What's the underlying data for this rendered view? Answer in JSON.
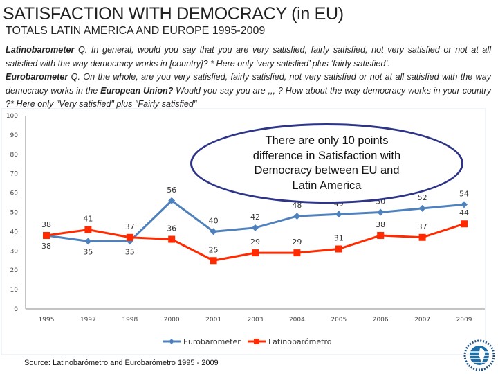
{
  "title": "SATISFACTION WITH DEMOCRACY (in EU)",
  "subtitle": "TOTALS LATIN AMERICA  AND EUROPE 1995-2009",
  "question": {
    "latino_label": "Latinobarometer",
    "latino_text": " Q. In general, would you say that you are very satisfied, fairly satisfied, not very satisfied or not at all satisfied with the way democracy works in [country]? * Here only ‘very satisfied’ plus ‘fairly satisfied’.",
    "euro_label": "Eurobarometer",
    "euro_text1": " Q. On the whole, are you very satisfied, fairly satisfied, not very satisfied or not at all satisfied with the way democracy works in the ",
    "euro_bold": "European Union?",
    "euro_text2": " Would you say you are ,,, ? How about the way democracy works in your country ?* Here only \"Very satisfied\" plus \"Fairly satisfied\""
  },
  "callout": "There are only 10 points difference in Satisfaction with Democracy between EU and Latin America",
  "source": "Source: Latinobarómetro and Eurobarómetro 1995 - 2009",
  "logo_text": "LATINOBARÓMETRO 1995-2010",
  "chart_data": {
    "type": "line",
    "categories": [
      "1995",
      "1997",
      "1998",
      "2000",
      "2001",
      "2003",
      "2004",
      "2005",
      "2006",
      "2007",
      "2009"
    ],
    "ylim": [
      0,
      100
    ],
    "yticks": [
      0,
      10,
      20,
      30,
      40,
      50,
      60,
      70,
      80,
      90,
      100
    ],
    "grid": false,
    "legend": "bottom",
    "series": [
      {
        "name": "Eurobarometer",
        "color": "#4f81bd",
        "marker": "diamond",
        "values": [
          38,
          35,
          35,
          56,
          40,
          42,
          48,
          49,
          50,
          52,
          54
        ]
      },
      {
        "name": "Latinobarómetro",
        "color": "#ff2a00",
        "marker": "square",
        "values": [
          38,
          41,
          37,
          36,
          25,
          29,
          29,
          31,
          38,
          37,
          44
        ]
      }
    ]
  }
}
